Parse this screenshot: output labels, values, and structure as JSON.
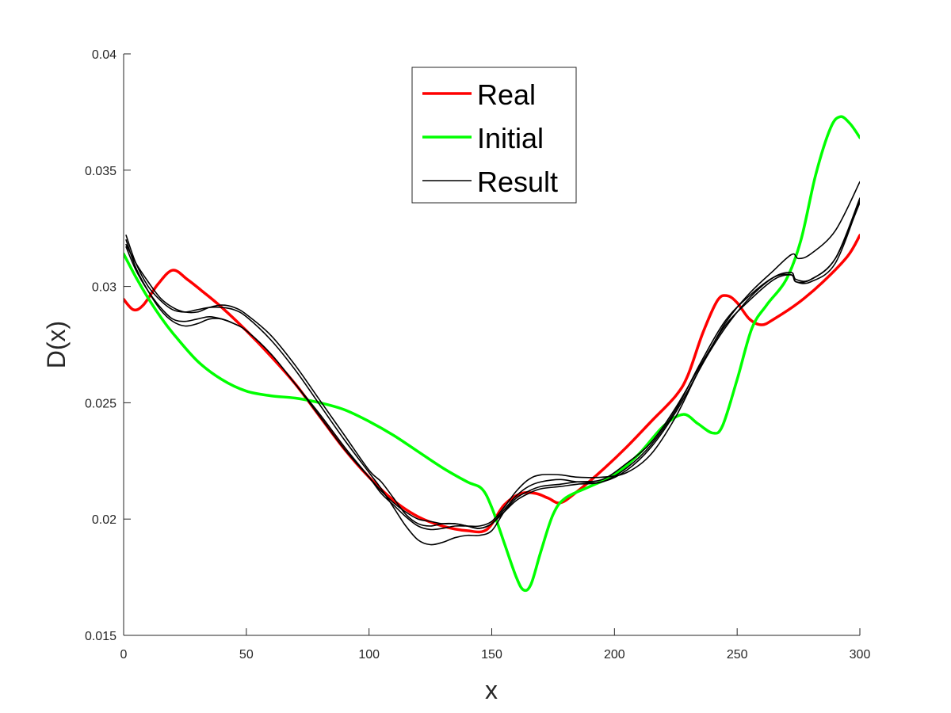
{
  "chart_data": {
    "type": "line",
    "title": "",
    "xlabel": "x",
    "ylabel": "D(x)",
    "xlim": [
      0,
      300
    ],
    "ylim": [
      0.015,
      0.04
    ],
    "xticks": [
      "0",
      "50",
      "100",
      "150",
      "200",
      "250",
      "300"
    ],
    "yticks": [
      "0.015",
      "0.02",
      "0.025",
      "0.03",
      "0.035",
      "0.04"
    ],
    "grid": false,
    "legend_position": "top-center",
    "legend": [
      {
        "label": "Real",
        "color": "#ff0000"
      },
      {
        "label": "Initial",
        "color": "#00ff00"
      },
      {
        "label": "Result",
        "color": "#000000"
      }
    ],
    "series": [
      {
        "name": "Real",
        "color": "#ff0000",
        "width": 3.5,
        "points": [
          [
            0,
            0.02945
          ],
          [
            4,
            0.029
          ],
          [
            8,
            0.0292
          ],
          [
            14,
            0.0301
          ],
          [
            20,
            0.0307
          ],
          [
            26,
            0.0303
          ],
          [
            32,
            0.0298
          ],
          [
            40,
            0.0291
          ],
          [
            50,
            0.0281
          ],
          [
            60,
            0.027
          ],
          [
            70,
            0.0258
          ],
          [
            80,
            0.0244
          ],
          [
            90,
            0.023
          ],
          [
            100,
            0.0218
          ],
          [
            110,
            0.0208
          ],
          [
            120,
            0.0201
          ],
          [
            130,
            0.0197
          ],
          [
            140,
            0.0195
          ],
          [
            148,
            0.01955
          ],
          [
            155,
            0.0206
          ],
          [
            162,
            0.0211
          ],
          [
            168,
            0.0211
          ],
          [
            173,
            0.0209
          ],
          [
            178,
            0.0207
          ],
          [
            185,
            0.0212
          ],
          [
            195,
            0.0221
          ],
          [
            205,
            0.0231
          ],
          [
            215,
            0.0242
          ],
          [
            225,
            0.0253
          ],
          [
            230,
            0.0262
          ],
          [
            236,
            0.028
          ],
          [
            242,
            0.0294
          ],
          [
            246,
            0.0296
          ],
          [
            250,
            0.0293
          ],
          [
            255,
            0.0286
          ],
          [
            260,
            0.02835
          ],
          [
            265,
            0.0286
          ],
          [
            275,
            0.0293
          ],
          [
            285,
            0.0302
          ],
          [
            295,
            0.0313
          ],
          [
            300,
            0.0322
          ]
        ]
      },
      {
        "name": "Initial",
        "color": "#00ff00",
        "width": 3.5,
        "points": [
          [
            0,
            0.0314
          ],
          [
            5,
            0.0304
          ],
          [
            10,
            0.0295
          ],
          [
            15,
            0.0287
          ],
          [
            20,
            0.028
          ],
          [
            30,
            0.0268
          ],
          [
            40,
            0.026
          ],
          [
            50,
            0.0255
          ],
          [
            60,
            0.0253
          ],
          [
            70,
            0.0252
          ],
          [
            80,
            0.025
          ],
          [
            90,
            0.0247
          ],
          [
            100,
            0.0242
          ],
          [
            110,
            0.0236
          ],
          [
            120,
            0.0229
          ],
          [
            130,
            0.0222
          ],
          [
            140,
            0.0216
          ],
          [
            146,
            0.0213
          ],
          [
            150,
            0.0205
          ],
          [
            155,
            0.019
          ],
          [
            160,
            0.0175
          ],
          [
            163,
            0.01695
          ],
          [
            166,
            0.0172
          ],
          [
            170,
            0.0186
          ],
          [
            175,
            0.0202
          ],
          [
            180,
            0.0209
          ],
          [
            190,
            0.0214
          ],
          [
            200,
            0.0219
          ],
          [
            210,
            0.0228
          ],
          [
            220,
            0.024
          ],
          [
            228,
            0.0245
          ],
          [
            234,
            0.0241
          ],
          [
            240,
            0.0237
          ],
          [
            244,
            0.024
          ],
          [
            250,
            0.026
          ],
          [
            256,
            0.0282
          ],
          [
            262,
            0.0292
          ],
          [
            270,
            0.0303
          ],
          [
            276,
            0.032
          ],
          [
            282,
            0.0348
          ],
          [
            288,
            0.0368
          ],
          [
            292,
            0.0373
          ],
          [
            296,
            0.037
          ],
          [
            300,
            0.0364
          ]
        ]
      },
      {
        "name": "Result",
        "color": "#000000",
        "width": 1.6,
        "points": [
          [
            1,
            0.0322
          ],
          [
            5,
            0.031
          ],
          [
            10,
            0.03
          ],
          [
            15,
            0.0294
          ],
          [
            20,
            0.029
          ],
          [
            25,
            0.0289
          ],
          [
            30,
            0.029
          ],
          [
            35,
            0.0291
          ],
          [
            40,
            0.0291
          ],
          [
            45,
            0.029
          ],
          [
            50,
            0.0287
          ],
          [
            60,
            0.0277
          ],
          [
            70,
            0.0264
          ],
          [
            80,
            0.0249
          ],
          [
            90,
            0.0234
          ],
          [
            100,
            0.022
          ],
          [
            105,
            0.0213
          ],
          [
            110,
            0.0205
          ],
          [
            115,
            0.0197
          ],
          [
            120,
            0.0191
          ],
          [
            125,
            0.0189
          ],
          [
            130,
            0.019
          ],
          [
            135,
            0.0192
          ],
          [
            140,
            0.0193
          ],
          [
            145,
            0.0193
          ],
          [
            150,
            0.0195
          ],
          [
            155,
            0.0203
          ],
          [
            160,
            0.0209
          ],
          [
            165,
            0.0212
          ],
          [
            170,
            0.0214
          ],
          [
            178,
            0.0215
          ],
          [
            185,
            0.0216
          ],
          [
            195,
            0.0217
          ],
          [
            205,
            0.0224
          ],
          [
            215,
            0.0233
          ],
          [
            225,
            0.0248
          ],
          [
            235,
            0.0266
          ],
          [
            245,
            0.0283
          ],
          [
            255,
            0.0294
          ],
          [
            265,
            0.0303
          ],
          [
            272,
            0.0305
          ],
          [
            274,
            0.0302
          ],
          [
            280,
            0.0303
          ],
          [
            290,
            0.0312
          ],
          [
            300,
            0.0338
          ]
        ]
      },
      {
        "name": "",
        "color": "#000000",
        "width": 1.6,
        "points": [
          [
            1,
            0.0317
          ],
          [
            5,
            0.0307
          ],
          [
            10,
            0.0298
          ],
          [
            15,
            0.0291
          ],
          [
            20,
            0.0286
          ],
          [
            25,
            0.0285
          ],
          [
            30,
            0.0286
          ],
          [
            35,
            0.0287
          ],
          [
            40,
            0.0286
          ],
          [
            45,
            0.0284
          ],
          [
            50,
            0.0281
          ],
          [
            60,
            0.0271
          ],
          [
            70,
            0.0258
          ],
          [
            80,
            0.0245
          ],
          [
            90,
            0.0231
          ],
          [
            100,
            0.0218
          ],
          [
            105,
            0.0211
          ],
          [
            110,
            0.0206
          ],
          [
            115,
            0.0201
          ],
          [
            120,
            0.0197
          ],
          [
            125,
            0.01955
          ],
          [
            130,
            0.0196
          ],
          [
            135,
            0.0197
          ],
          [
            140,
            0.0197
          ],
          [
            145,
            0.0197
          ],
          [
            150,
            0.0199
          ],
          [
            155,
            0.0205
          ],
          [
            160,
            0.0212
          ],
          [
            165,
            0.0217
          ],
          [
            170,
            0.0219
          ],
          [
            178,
            0.0219
          ],
          [
            185,
            0.0218
          ],
          [
            195,
            0.0218
          ],
          [
            205,
            0.022
          ],
          [
            215,
            0.0228
          ],
          [
            225,
            0.0244
          ],
          [
            235,
            0.0265
          ],
          [
            245,
            0.0282
          ],
          [
            255,
            0.0295
          ],
          [
            265,
            0.0304
          ],
          [
            272,
            0.0306
          ],
          [
            274,
            0.0303
          ],
          [
            280,
            0.0303
          ],
          [
            290,
            0.0312
          ],
          [
            300,
            0.0336
          ]
        ]
      },
      {
        "name": "",
        "color": "#000000",
        "width": 1.6,
        "points": [
          [
            1,
            0.032
          ],
          [
            5,
            0.0308
          ],
          [
            10,
            0.0298
          ],
          [
            15,
            0.029
          ],
          [
            20,
            0.0285
          ],
          [
            25,
            0.0283
          ],
          [
            30,
            0.0284
          ],
          [
            35,
            0.0286
          ],
          [
            40,
            0.0286
          ],
          [
            45,
            0.0284
          ],
          [
            50,
            0.0281
          ],
          [
            60,
            0.0271
          ],
          [
            70,
            0.0258
          ],
          [
            80,
            0.0244
          ],
          [
            90,
            0.023
          ],
          [
            100,
            0.0218
          ],
          [
            105,
            0.0212
          ],
          [
            110,
            0.0207
          ],
          [
            115,
            0.0203
          ],
          [
            120,
            0.02
          ],
          [
            125,
            0.0199
          ],
          [
            130,
            0.0198
          ],
          [
            135,
            0.0198
          ],
          [
            140,
            0.0197
          ],
          [
            145,
            0.0196
          ],
          [
            150,
            0.0198
          ],
          [
            155,
            0.0203
          ],
          [
            160,
            0.0208
          ],
          [
            165,
            0.0211
          ],
          [
            170,
            0.0213
          ],
          [
            178,
            0.0214
          ],
          [
            185,
            0.0215
          ],
          [
            195,
            0.0216
          ],
          [
            205,
            0.0222
          ],
          [
            215,
            0.0232
          ],
          [
            225,
            0.0247
          ],
          [
            235,
            0.0267
          ],
          [
            245,
            0.0285
          ],
          [
            255,
            0.0296
          ],
          [
            265,
            0.0304
          ],
          [
            272,
            0.0305
          ],
          [
            274,
            0.0302
          ],
          [
            280,
            0.0302
          ],
          [
            290,
            0.031
          ],
          [
            300,
            0.0337
          ]
        ]
      },
      {
        "name": "",
        "color": "#000000",
        "width": 1.6,
        "points": [
          [
            1,
            0.0318
          ],
          [
            5,
            0.031
          ],
          [
            10,
            0.0302
          ],
          [
            15,
            0.0295
          ],
          [
            20,
            0.0291
          ],
          [
            25,
            0.0289
          ],
          [
            30,
            0.0289
          ],
          [
            35,
            0.0291
          ],
          [
            40,
            0.0292
          ],
          [
            45,
            0.0291
          ],
          [
            50,
            0.0288
          ],
          [
            60,
            0.0279
          ],
          [
            70,
            0.0266
          ],
          [
            80,
            0.0251
          ],
          [
            90,
            0.0236
          ],
          [
            100,
            0.0221
          ],
          [
            105,
            0.0216
          ],
          [
            110,
            0.0209
          ],
          [
            115,
            0.0202
          ],
          [
            120,
            0.0198
          ],
          [
            125,
            0.0197
          ],
          [
            130,
            0.0198
          ],
          [
            135,
            0.0198
          ],
          [
            140,
            0.0197
          ],
          [
            145,
            0.0196
          ],
          [
            150,
            0.0198
          ],
          [
            155,
            0.0204
          ],
          [
            160,
            0.021
          ],
          [
            165,
            0.0214
          ],
          [
            170,
            0.0216
          ],
          [
            178,
            0.0217
          ],
          [
            185,
            0.0216
          ],
          [
            195,
            0.0216
          ],
          [
            205,
            0.0221
          ],
          [
            215,
            0.0231
          ],
          [
            225,
            0.0246
          ],
          [
            235,
            0.0265
          ],
          [
            245,
            0.0284
          ],
          [
            255,
            0.0297
          ],
          [
            265,
            0.0307
          ],
          [
            270,
            0.0312
          ],
          [
            273,
            0.0314
          ],
          [
            275,
            0.0312
          ],
          [
            280,
            0.0314
          ],
          [
            290,
            0.0324
          ],
          [
            300,
            0.0345
          ]
        ]
      }
    ]
  }
}
